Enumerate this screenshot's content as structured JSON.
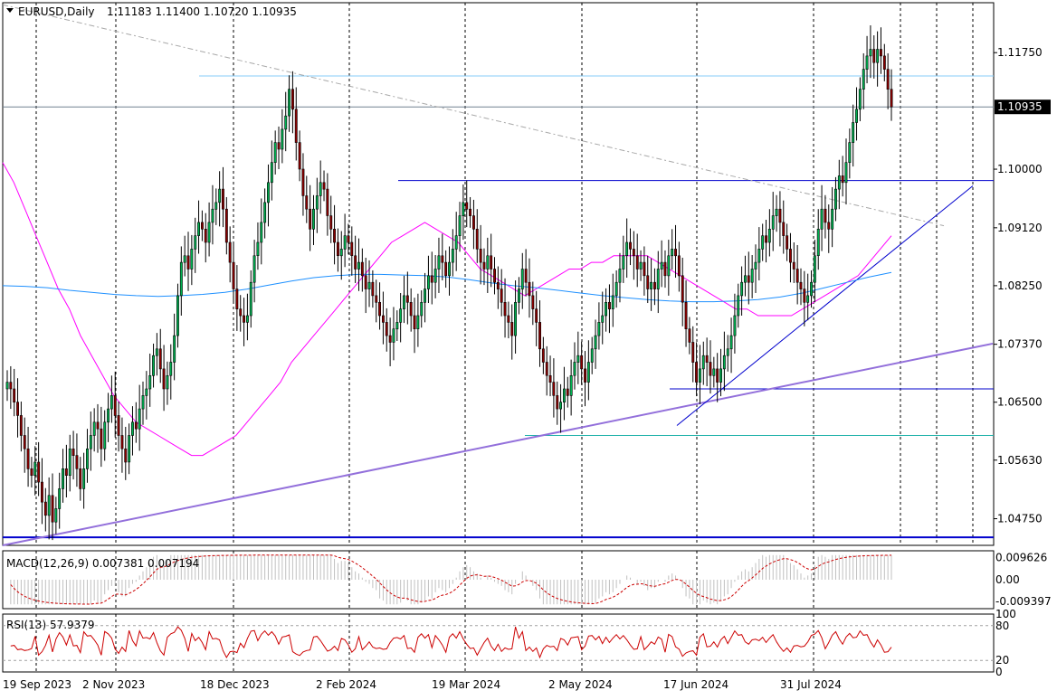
{
  "chart_data": [
    {
      "type": "candlestick",
      "symbol": "EURUSD,Daily",
      "header_values": "1.11183 1.11400 1.10720 1.10935",
      "ohlc_last": {
        "open": 1.11183,
        "high": 1.114,
        "low": 1.1072,
        "close": 1.10935
      },
      "current_price_label": "1.10935",
      "y_ticks": [
        "1.11750",
        "1.10000",
        "1.09120",
        "1.08250",
        "1.07370",
        "1.06500",
        "1.05630",
        "1.04750"
      ],
      "ylim": [
        1.0435,
        1.125
      ],
      "x_tick_labels": [
        "19 Sep 2023",
        "2 Nov 2023",
        "18 Dec 2023",
        "2 Feb 2024",
        "19 Mar 2024",
        "2 May 2024",
        "17 Jun 2024",
        "31 Jul 2024"
      ],
      "closes": [
        1.068,
        1.067,
        1.065,
        1.063,
        1.06,
        1.058,
        1.055,
        1.054,
        1.056,
        1.053,
        1.05,
        1.048,
        1.051,
        1.047,
        1.049,
        1.052,
        1.055,
        1.054,
        1.058,
        1.057,
        1.055,
        1.052,
        1.055,
        1.058,
        1.06,
        1.062,
        1.061,
        1.058,
        1.062,
        1.064,
        1.066,
        1.063,
        1.06,
        1.058,
        1.056,
        1.06,
        1.062,
        1.061,
        1.064,
        1.066,
        1.067,
        1.069,
        1.072,
        1.073,
        1.07,
        1.067,
        1.069,
        1.071,
        1.075,
        1.081,
        1.086,
        1.087,
        1.085,
        1.088,
        1.09,
        1.092,
        1.091,
        1.089,
        1.092,
        1.094,
        1.095,
        1.097,
        1.094,
        1.089,
        1.086,
        1.082,
        1.079,
        1.078,
        1.077,
        1.078,
        1.083,
        1.087,
        1.089,
        1.092,
        1.095,
        1.098,
        1.101,
        1.104,
        1.103,
        1.106,
        1.108,
        1.112,
        1.109,
        1.104,
        1.1,
        1.096,
        1.094,
        1.091,
        1.094,
        1.096,
        1.098,
        1.097,
        1.093,
        1.091,
        1.089,
        1.087,
        1.088,
        1.09,
        1.089,
        1.087,
        1.085,
        1.086,
        1.084,
        1.082,
        1.083,
        1.081,
        1.08,
        1.078,
        1.077,
        1.075,
        1.074,
        1.076,
        1.077,
        1.079,
        1.081,
        1.08,
        1.078,
        1.076,
        1.078,
        1.08,
        1.082,
        1.084,
        1.083,
        1.085,
        1.087,
        1.086,
        1.084,
        1.086,
        1.088,
        1.09,
        1.093,
        1.095,
        1.094,
        1.093,
        1.091,
        1.088,
        1.086,
        1.085,
        1.087,
        1.085,
        1.083,
        1.082,
        1.08,
        1.078,
        1.077,
        1.075,
        1.08,
        1.082,
        1.085,
        1.083,
        1.081,
        1.079,
        1.077,
        1.073,
        1.071,
        1.069,
        1.068,
        1.066,
        1.064,
        1.065,
        1.067,
        1.066,
        1.069,
        1.071,
        1.072,
        1.07,
        1.068,
        1.071,
        1.073,
        1.075,
        1.077,
        1.078,
        1.08,
        1.079,
        1.081,
        1.083,
        1.085,
        1.087,
        1.089,
        1.088,
        1.087,
        1.085,
        1.086,
        1.084,
        1.082,
        1.083,
        1.082,
        1.085,
        1.086,
        1.084,
        1.087,
        1.088,
        1.087,
        1.084,
        1.08,
        1.076,
        1.074,
        1.071,
        1.068,
        1.07,
        1.072,
        1.071,
        1.069,
        1.07,
        1.068,
        1.07,
        1.072,
        1.073,
        1.075,
        1.078,
        1.081,
        1.083,
        1.084,
        1.083,
        1.085,
        1.086,
        1.088,
        1.09,
        1.089,
        1.091,
        1.093,
        1.094,
        1.092,
        1.09,
        1.088,
        1.086,
        1.085,
        1.083,
        1.082,
        1.08,
        1.081,
        1.083,
        1.087,
        1.091,
        1.094,
        1.092,
        1.091,
        1.094,
        1.097,
        1.099,
        1.098,
        1.101,
        1.104,
        1.107,
        1.109,
        1.112,
        1.115,
        1.117,
        1.118,
        1.116,
        1.118,
        1.117,
        1.115,
        1.112,
        1.10935
      ],
      "ma_fast": [
        1.101,
        1.098,
        1.094,
        1.09,
        1.086,
        1.082,
        1.079,
        1.075,
        1.072,
        1.069,
        1.066,
        1.064,
        1.062,
        1.061,
        1.06,
        1.059,
        1.058,
        1.057,
        1.057,
        1.058,
        1.059,
        1.06,
        1.062,
        1.064,
        1.066,
        1.068,
        1.071,
        1.073,
        1.075,
        1.077,
        1.079,
        1.081,
        1.083,
        1.085,
        1.087,
        1.089,
        1.09,
        1.091,
        1.092,
        1.091,
        1.09,
        1.089,
        1.087,
        1.085,
        1.084,
        1.083,
        1.082,
        1.081,
        1.082,
        1.083,
        1.084,
        1.085,
        1.085,
        1.086,
        1.086,
        1.087,
        1.087,
        1.087,
        1.087,
        1.086,
        1.085,
        1.084,
        1.083,
        1.082,
        1.081,
        1.08,
        1.079,
        1.079,
        1.078,
        1.078,
        1.078,
        1.078,
        1.079,
        1.08,
        1.081,
        1.082,
        1.083,
        1.084,
        1.086,
        1.088,
        1.09
      ],
      "ma_slow": [
        1.0825,
        1.0824,
        1.0822,
        1.0818,
        1.0815,
        1.0812,
        1.081,
        1.0809,
        1.081,
        1.0812,
        1.0815,
        1.082,
        1.0826,
        1.0832,
        1.0837,
        1.084,
        1.0842,
        1.0842,
        1.0841,
        1.084,
        1.0838,
        1.0834,
        1.0829,
        1.0825,
        1.0822,
        1.0818,
        1.0814,
        1.081,
        1.0807,
        1.0804,
        1.0802,
        1.0801,
        1.0801,
        1.0802,
        1.0804,
        1.0808,
        1.0814,
        1.0822,
        1.083,
        1.0838,
        1.0845
      ],
      "price_lines": [
        {
          "price": 1.114,
          "color": "#87cefa"
        },
        {
          "price": 1.10935,
          "color": "#708090"
        },
        {
          "price": 1.0983,
          "color": "#0000cd"
        },
        {
          "price": 1.067,
          "color": "#0000cd"
        },
        {
          "price": 1.06,
          "color": "#20b2aa"
        },
        {
          "price": 1.0447,
          "color": "#0000cd"
        }
      ],
      "trend_lines": [
        {
          "p1": [
            "19 Sep 2023",
            1.1247
          ],
          "p2": [
            "31 Jul 2024",
            1.0915
          ],
          "color": "#a9a9a9",
          "dashed": true
        },
        {
          "p1": [
            "19 Sep 2023",
            1.0435
          ],
          "p2": [
            "31 Jul 2024",
            1.0738
          ],
          "color": "#9370db",
          "dashed": false
        },
        {
          "p1": [
            "17 Jun 2024",
            1.0615
          ],
          "p2": [
            "31 Jul 2024",
            1.0975
          ],
          "color": "#0000cd",
          "dashed": false
        }
      ],
      "colors": {
        "bull": "#00b050",
        "bear": "#8b0000",
        "ma_fast": "#ff00ff",
        "ma_slow": "#1e90ff",
        "grid": "#000000",
        "background": "#ffffff"
      }
    },
    {
      "type": "histogram",
      "label": "MACD(12,26,9) 0.007381 0.007194",
      "y_ticks": [
        "0.009626",
        "0.00",
        "-0.009397"
      ],
      "ylim": [
        -0.0125,
        0.0125
      ],
      "signal_color": "#cc0000",
      "hist_color": "#c0c0c0"
    },
    {
      "type": "line",
      "label": "RSI(13) 57.9379",
      "y_ticks": [
        "100",
        "80",
        "20",
        "0"
      ],
      "ylim": [
        0,
        100
      ],
      "levels": [
        80,
        20
      ],
      "line_color": "#cc0000"
    }
  ]
}
